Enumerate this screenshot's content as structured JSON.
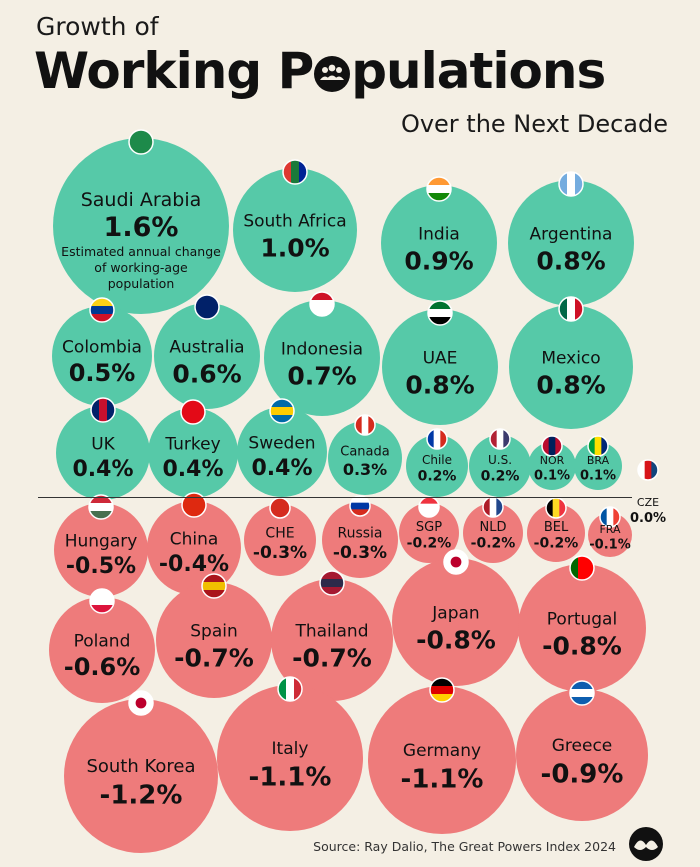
{
  "title": {
    "line1": "Growth of",
    "line2_prefix": "Working P",
    "line2_suffix": "pulations",
    "line3": "Over the Next Decade"
  },
  "source": "Source: Ray Dalio, The Great Powers Index 2024",
  "colors": {
    "positive": "#56c9a8",
    "negative": "#ee7b7b",
    "zero": "#e8e3d8",
    "background": "#f4efe4"
  },
  "chart_data": {
    "type": "bubble",
    "title": "Growth of Working Populations Over the Next Decade",
    "unit": "%",
    "annotation": "Estimated annual change of working-age population",
    "categories": [
      "Saudi Arabia",
      "South Africa",
      "India",
      "Argentina",
      "Colombia",
      "Australia",
      "Indonesia",
      "UAE",
      "Mexico",
      "UK",
      "Turkey",
      "Sweden",
      "Canada",
      "Chile",
      "U.S.",
      "NOR",
      "BRA",
      "CZE",
      "Hungary",
      "China",
      "CHE",
      "Russia",
      "SGP",
      "NLD",
      "BEL",
      "FRA",
      "Poland",
      "Spain",
      "Thailand",
      "Japan",
      "Portugal",
      "South Korea",
      "Italy",
      "Germany",
      "Greece"
    ],
    "values": [
      1.6,
      1.0,
      0.9,
      0.8,
      0.5,
      0.6,
      0.7,
      0.8,
      0.8,
      0.4,
      0.4,
      0.4,
      0.3,
      0.2,
      0.2,
      0.1,
      0.1,
      0.0,
      -0.5,
      -0.4,
      -0.3,
      -0.3,
      -0.2,
      -0.2,
      -0.2,
      -0.1,
      -0.6,
      -0.7,
      -0.7,
      -0.8,
      -0.8,
      -1.2,
      -1.1,
      -1.1,
      -0.9
    ],
    "labels": [
      "1.6%",
      "1.0%",
      "0.9%",
      "0.8%",
      "0.5%",
      "0.6%",
      "0.7%",
      "0.8%",
      "0.8%",
      "0.4%",
      "0.4%",
      "0.4%",
      "0.3%",
      "0.2%",
      "0.2%",
      "0.1%",
      "0.1%",
      "0.0%",
      "-0.5%",
      "-0.4%",
      "-0.3%",
      "-0.3%",
      "-0.2%",
      "-0.2%",
      "-0.2%",
      "-0.1%",
      "-0.6%",
      "-0.7%",
      "-0.7%",
      "-0.8%",
      "-0.8%",
      "-1.2%",
      "-1.1%",
      "-1.1%",
      "-0.9%"
    ],
    "flags": [
      "saudi-arabia-flag",
      "south-africa-flag",
      "india-flag",
      "argentina-flag",
      "colombia-flag",
      "australia-flag",
      "indonesia-flag",
      "uae-flag",
      "mexico-flag",
      "uk-flag",
      "turkey-flag",
      "sweden-flag",
      "canada-flag",
      "chile-flag",
      "us-flag",
      "norway-flag",
      "brazil-flag",
      "czechia-flag",
      "hungary-flag",
      "china-flag",
      "switzerland-flag",
      "russia-flag",
      "singapore-flag",
      "netherlands-flag",
      "belgium-flag",
      "france-flag",
      "poland-flag",
      "spain-flag",
      "thailand-flag",
      "japan-flag",
      "portugal-flag",
      "south-korea-flag",
      "italy-flag",
      "germany-flag",
      "greece-flag"
    ]
  }
}
